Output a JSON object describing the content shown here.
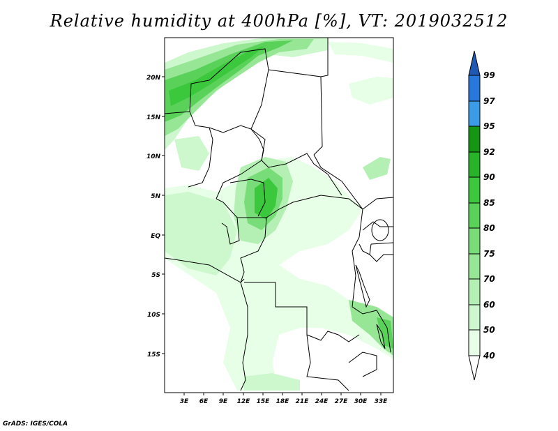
{
  "title": "Relative humidity at 400hPa [%], VT: 2019032512",
  "credit": "GrADS: IGES/COLA",
  "map": {
    "lat_labels": [
      "20N",
      "15N",
      "10N",
      "5N",
      "EQ",
      "5S",
      "10S",
      "15S"
    ],
    "lon_labels": [
      "3E",
      "6E",
      "9E",
      "12E",
      "15E",
      "18E",
      "21E",
      "24E",
      "27E",
      "30E",
      "33E"
    ]
  },
  "colorbar": {
    "levels": [
      "40",
      "50",
      "60",
      "70",
      "75",
      "80",
      "85",
      "90",
      "92",
      "95",
      "97",
      "99"
    ],
    "colors": [
      "#e6ffe6",
      "#cdf7cd",
      "#b4f0b4",
      "#96e696",
      "#78dc78",
      "#5ad25a",
      "#3cc83c",
      "#28b428",
      "#149614",
      "#3c9be6",
      "#2878dc",
      "#1e5ab4"
    ]
  }
}
